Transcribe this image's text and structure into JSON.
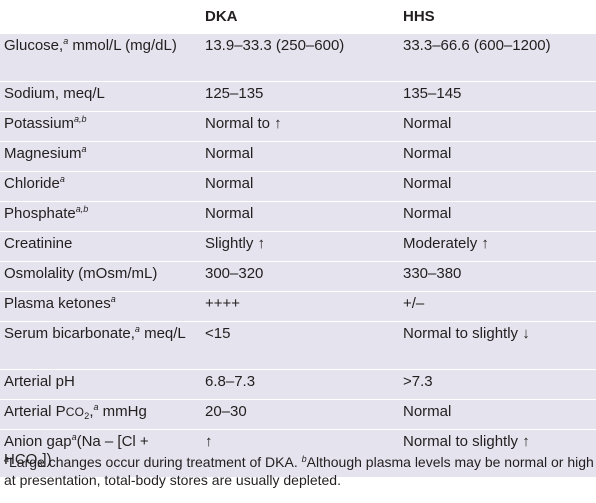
{
  "table": {
    "headers": [
      "",
      "DKA",
      "HHS"
    ],
    "rows": [
      {
        "label_pre": "Glucose,",
        "label_sup": "a",
        "label_post": " mmol/L (mg/dL)",
        "dka": "13.9–33.3 (250–600)",
        "hhs": "33.3–66.6 (600–1200)"
      },
      {
        "label_pre": "Sodium, meq/L",
        "label_sup": "",
        "label_post": "",
        "dka": "125–135",
        "hhs": "135–145"
      },
      {
        "label_pre": "Potassium",
        "label_sup": "a,b",
        "label_post": "",
        "dka": "Normal to ↑",
        "hhs": "Normal"
      },
      {
        "label_pre": "Magnesium",
        "label_sup": "a",
        "label_post": "",
        "dka": "Normal",
        "hhs": "Normal"
      },
      {
        "label_pre": "Chloride",
        "label_sup": "a",
        "label_post": "",
        "dka": "Normal",
        "hhs": "Normal"
      },
      {
        "label_pre": "Phosphate",
        "label_sup": "a,b",
        "label_post": "",
        "dka": "Normal",
        "hhs": "Normal"
      },
      {
        "label_pre": "Creatinine",
        "label_sup": "",
        "label_post": "",
        "dka": "Slightly ↑",
        "hhs": "Moderately ↑"
      },
      {
        "label_pre": "Osmolality (mOsm/mL)",
        "label_sup": "",
        "label_post": "",
        "dka": "300–320",
        "hhs": "330–380"
      },
      {
        "label_pre": "Plasma ketones",
        "label_sup": "a",
        "label_post": "",
        "dka": "++++",
        "hhs": "+/–"
      },
      {
        "label_pre": "Serum bicarbonate,",
        "label_sup": "a",
        "label_post": " meq/L",
        "dka": "<15",
        "hhs": "Normal to slightly ↓"
      },
      {
        "label_pre": "Arterial pH",
        "label_sup": "",
        "label_post": "",
        "dka": "6.8–7.3",
        "hhs": ">7.3"
      }
    ],
    "pco2_row": {
      "pre": "Arterial P",
      "smallcaps": "CO",
      "sub": "2",
      "comma": ",",
      "sup": "a",
      "post": " mmHg",
      "dka": "20–30",
      "hhs": "Normal"
    },
    "anion_row": {
      "pre": "Anion gap",
      "sup": "a",
      "mid": "(Na – [Cl + HCO",
      "sub": "3",
      "end": "])",
      "dka": "↑",
      "hhs": "Normal to slightly ↑"
    }
  },
  "footnote": {
    "a_mark": "a",
    "a_text": "Large changes occur during treatment of DKA. ",
    "b_mark": "b",
    "b_text": "Although plasma levels may be normal or high at presentation, total-body stores are usually depleted."
  }
}
